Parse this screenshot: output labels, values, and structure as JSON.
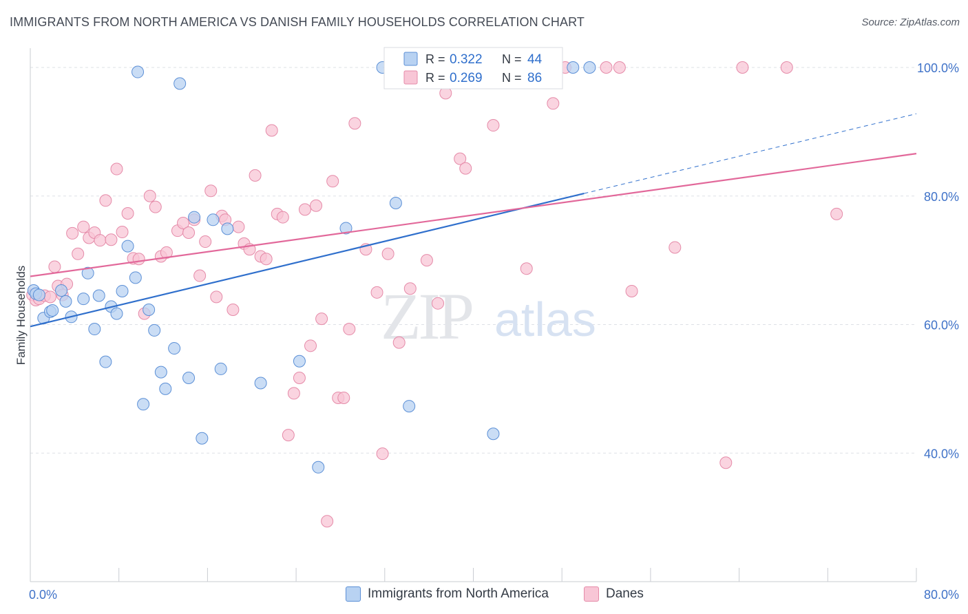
{
  "header": {
    "title": "IMMIGRANTS FROM NORTH AMERICA VS DANISH FAMILY HOUSEHOLDS CORRELATION CHART",
    "source": "Source: ZipAtlas.com"
  },
  "watermark": {
    "zip": "ZIP",
    "atlas": "atlas"
  },
  "colors": {
    "blue_fill": "#b8d2f2",
    "blue_stroke": "#5b8fd6",
    "blue_line": "#2f6fcc",
    "pink_fill": "#f8c6d6",
    "pink_stroke": "#e58aa8",
    "pink_line": "#e2689a",
    "tick_label": "#3f72c8",
    "grid": "#dde0e6"
  },
  "legend_stats": [
    {
      "r_label": "R =",
      "r_value": "0.322",
      "n_label": "N =",
      "n_value": "44"
    },
    {
      "r_label": "R =",
      "r_value": "0.269",
      "n_label": "N =",
      "n_value": "86"
    }
  ],
  "chart_data": {
    "type": "scatter",
    "title": "IMMIGRANTS FROM NORTH AMERICA VS DANISH FAMILY HOUSEHOLDS CORRELATION CHART",
    "xlabel": "",
    "ylabel": "Family Households",
    "xlim": [
      0,
      80
    ],
    "ylim": [
      20,
      103
    ],
    "x_tick_labels": [
      "0.0%",
      "80.0%"
    ],
    "y_ticks": [
      40,
      60,
      80,
      100
    ],
    "y_tick_labels": [
      "40.0%",
      "60.0%",
      "80.0%",
      "100.0%"
    ],
    "grid": true,
    "legend_position": "top-center",
    "series": [
      {
        "name": "Immigrants from North America",
        "r": 0.322,
        "n": 44,
        "trend": {
          "x0": 0,
          "y0": 59.7,
          "x1": 50,
          "y1": 80.4,
          "dashed_to_x": 80,
          "dashed_to_y": 92.8
        },
        "points": [
          [
            0.3,
            65.3
          ],
          [
            0.5,
            64.8
          ],
          [
            0.8,
            64.6
          ],
          [
            1.2,
            61.0
          ],
          [
            1.8,
            62.0
          ],
          [
            2.0,
            62.2
          ],
          [
            2.8,
            65.3
          ],
          [
            3.2,
            63.6
          ],
          [
            3.7,
            61.2
          ],
          [
            4.8,
            64.0
          ],
          [
            5.2,
            68.0
          ],
          [
            5.8,
            59.3
          ],
          [
            6.2,
            64.5
          ],
          [
            6.8,
            54.2
          ],
          [
            7.3,
            62.8
          ],
          [
            7.8,
            61.7
          ],
          [
            8.3,
            65.2
          ],
          [
            8.8,
            72.2
          ],
          [
            9.5,
            67.3
          ],
          [
            9.7,
            99.3
          ],
          [
            10.2,
            47.6
          ],
          [
            10.7,
            62.3
          ],
          [
            11.2,
            59.1
          ],
          [
            11.8,
            52.6
          ],
          [
            12.2,
            50.0
          ],
          [
            13.0,
            56.3
          ],
          [
            13.5,
            97.5
          ],
          [
            14.3,
            51.7
          ],
          [
            14.8,
            76.7
          ],
          [
            15.5,
            42.3
          ],
          [
            16.5,
            76.3
          ],
          [
            17.2,
            53.1
          ],
          [
            17.8,
            74.9
          ],
          [
            20.8,
            50.9
          ],
          [
            24.3,
            54.3
          ],
          [
            26.0,
            37.8
          ],
          [
            28.5,
            75.0
          ],
          [
            31.8,
            100.0
          ],
          [
            32.8,
            100.0
          ],
          [
            33.0,
            78.9
          ],
          [
            34.2,
            47.3
          ],
          [
            41.8,
            43.0
          ],
          [
            49.0,
            100.0
          ],
          [
            50.5,
            100.0
          ]
        ]
      },
      {
        "name": "Danes",
        "r": 0.269,
        "n": 86,
        "trend": {
          "x0": 0,
          "y0": 67.5,
          "x1": 80,
          "y1": 86.6
        },
        "points": [
          [
            0.2,
            64.6
          ],
          [
            0.5,
            63.8
          ],
          [
            0.8,
            64.0
          ],
          [
            1.3,
            64.5
          ],
          [
            1.8,
            64.3
          ],
          [
            2.2,
            69.0
          ],
          [
            2.5,
            66.0
          ],
          [
            2.9,
            64.6
          ],
          [
            3.3,
            66.3
          ],
          [
            3.8,
            74.2
          ],
          [
            4.3,
            71.0
          ],
          [
            4.8,
            75.2
          ],
          [
            5.3,
            73.5
          ],
          [
            5.8,
            74.3
          ],
          [
            6.3,
            73.1
          ],
          [
            6.8,
            79.3
          ],
          [
            7.3,
            73.2
          ],
          [
            7.8,
            84.2
          ],
          [
            8.3,
            74.4
          ],
          [
            8.8,
            77.3
          ],
          [
            9.3,
            70.3
          ],
          [
            9.8,
            70.2
          ],
          [
            10.3,
            61.7
          ],
          [
            10.8,
            80.0
          ],
          [
            11.3,
            78.3
          ],
          [
            11.8,
            70.6
          ],
          [
            12.3,
            71.2
          ],
          [
            13.3,
            74.6
          ],
          [
            13.8,
            75.8
          ],
          [
            14.3,
            74.3
          ],
          [
            14.8,
            76.3
          ],
          [
            15.3,
            67.6
          ],
          [
            15.8,
            72.9
          ],
          [
            16.3,
            80.8
          ],
          [
            16.8,
            64.3
          ],
          [
            17.3,
            76.9
          ],
          [
            17.6,
            76.3
          ],
          [
            18.3,
            62.3
          ],
          [
            18.8,
            75.2
          ],
          [
            19.3,
            72.6
          ],
          [
            19.8,
            71.7
          ],
          [
            20.3,
            83.2
          ],
          [
            20.8,
            70.6
          ],
          [
            21.3,
            70.2
          ],
          [
            21.8,
            90.2
          ],
          [
            22.3,
            77.2
          ],
          [
            22.8,
            76.7
          ],
          [
            23.3,
            42.8
          ],
          [
            23.8,
            49.3
          ],
          [
            24.3,
            51.7
          ],
          [
            24.8,
            77.9
          ],
          [
            25.3,
            56.7
          ],
          [
            25.8,
            78.5
          ],
          [
            26.3,
            60.9
          ],
          [
            26.8,
            29.4
          ],
          [
            27.3,
            82.3
          ],
          [
            27.8,
            48.6
          ],
          [
            28.3,
            48.6
          ],
          [
            28.8,
            59.3
          ],
          [
            29.3,
            91.3
          ],
          [
            30.3,
            71.7
          ],
          [
            31.3,
            65.0
          ],
          [
            31.8,
            39.9
          ],
          [
            32.3,
            71.0
          ],
          [
            33.3,
            57.2
          ],
          [
            34.3,
            65.6
          ],
          [
            35.5,
            100.0
          ],
          [
            35.8,
            70.0
          ],
          [
            36.8,
            63.3
          ],
          [
            37.5,
            96.0
          ],
          [
            38.8,
            85.8
          ],
          [
            39.3,
            84.3
          ],
          [
            41.8,
            91.0
          ],
          [
            43.8,
            100.0
          ],
          [
            44.8,
            68.7
          ],
          [
            45.3,
            100.0
          ],
          [
            47.2,
            94.4
          ],
          [
            48.3,
            100.0
          ],
          [
            52.0,
            100.0
          ],
          [
            53.2,
            100.0
          ],
          [
            54.3,
            65.2
          ],
          [
            58.2,
            72.0
          ],
          [
            62.8,
            38.5
          ],
          [
            64.3,
            100.0
          ],
          [
            68.3,
            100.0
          ],
          [
            72.8,
            77.2
          ]
        ]
      }
    ]
  },
  "bottom_legend": [
    {
      "label": "Immigrants from North America"
    },
    {
      "label": "Danes"
    }
  ]
}
